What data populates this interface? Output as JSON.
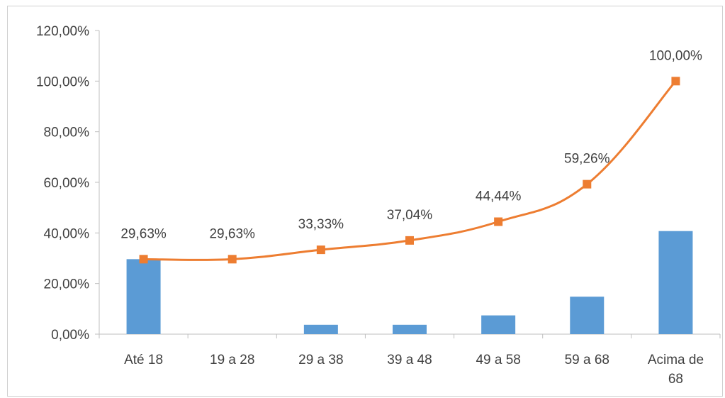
{
  "chart_data": {
    "type": "bar+line",
    "categories": [
      "Até 18",
      "19 a 28",
      "29 a 38",
      "39 a 48",
      "49 a 58",
      "59 a 68",
      "Acima de 68"
    ],
    "series": [
      {
        "type": "bar",
        "color": "#5b9bd5",
        "values": [
          29.63,
          0,
          3.7,
          3.7,
          7.41,
          14.81,
          40.74
        ]
      },
      {
        "type": "line",
        "marker": "square",
        "color": "#ed7d31",
        "values": [
          29.63,
          29.63,
          33.33,
          37.04,
          44.44,
          59.26,
          100.0
        ],
        "data_labels": [
          "29,63%",
          "29,63%",
          "33,33%",
          "37,04%",
          "44,44%",
          "59,26%",
          "100,00%"
        ]
      }
    ],
    "ylim": [
      0,
      120
    ],
    "yticks": [
      0,
      20,
      40,
      60,
      80,
      100,
      120
    ],
    "ytick_labels": [
      "0,00%",
      "20,00%",
      "40,00%",
      "60,00%",
      "80,00%",
      "100,00%",
      "120,00%"
    ],
    "grid": false,
    "legend": "none"
  }
}
